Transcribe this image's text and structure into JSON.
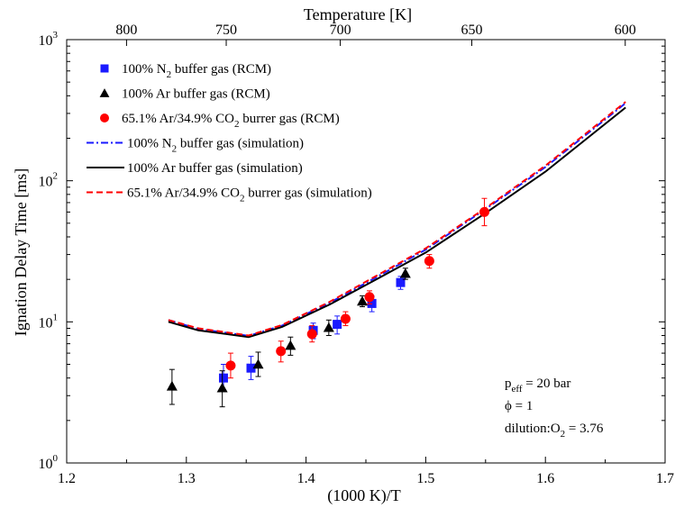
{
  "chart_data": {
    "type": "scatter",
    "xlabel": "(1000 K)/T",
    "ylabel": "Ignation Delay Time [ms]",
    "top_xlabel": "Temperature [K]",
    "xlim": [
      1.2,
      1.7
    ],
    "ylim": [
      1,
      1000
    ],
    "y_scale": "log",
    "grid": false,
    "legend_position": "top-left",
    "x_ticks": [
      "1.2",
      "1.3",
      "1.4",
      "1.5",
      "1.6",
      "1.7"
    ],
    "y_ticks": [
      {
        "base": "10",
        "exp": "0",
        "value": 1
      },
      {
        "base": "10",
        "exp": "1",
        "value": 10
      },
      {
        "base": "10",
        "exp": "2",
        "value": 100
      },
      {
        "base": "10",
        "exp": "3",
        "value": 1000
      }
    ],
    "top_ticks": [
      {
        "label": "800",
        "x": 1.25
      },
      {
        "label": "750",
        "x": 1.3333
      },
      {
        "label": "700",
        "x": 1.4286
      },
      {
        "label": "650",
        "x": 1.5385
      },
      {
        "label": "600",
        "x": 1.6667
      }
    ],
    "series": [
      {
        "name_parts": [
          [
            "100% N",
            ""
          ],
          [
            "2",
            "sub"
          ],
          [
            " buffer gas (RCM)",
            ""
          ]
        ],
        "kind": "points",
        "marker": "square",
        "color": "#1a1aff",
        "x": [
          1.331,
          1.354,
          1.406,
          1.426,
          1.455,
          1.479
        ],
        "y": [
          4.0,
          4.7,
          8.7,
          9.6,
          13.5,
          19.0
        ],
        "err_low": [
          3.3,
          3.9,
          7.6,
          8.2,
          11.8,
          17.0
        ],
        "err_high": [
          5.0,
          5.7,
          9.8,
          11.0,
          15.2,
          21.0
        ]
      },
      {
        "name_parts": [
          [
            "100% Ar buffer gas (RCM)",
            ""
          ]
        ],
        "kind": "points",
        "marker": "triangle",
        "color": "#000000",
        "x": [
          1.288,
          1.33,
          1.36,
          1.387,
          1.419,
          1.447,
          1.483
        ],
        "y": [
          3.5,
          3.4,
          5.0,
          6.8,
          9.1,
          14.0,
          22.0
        ],
        "err_low": [
          2.6,
          2.5,
          4.1,
          5.8,
          8.0,
          12.8,
          20.0
        ],
        "err_high": [
          4.6,
          4.5,
          6.1,
          7.8,
          10.3,
          15.3,
          24.0
        ]
      },
      {
        "name_parts": [
          [
            "65.1% Ar/34.9% CO",
            ""
          ],
          [
            "2",
            "sub"
          ],
          [
            " burrer gas (RCM)",
            ""
          ]
        ],
        "kind": "points",
        "marker": "circle",
        "color": "#ff0000",
        "x": [
          1.337,
          1.379,
          1.405,
          1.433,
          1.453,
          1.503,
          1.549
        ],
        "y": [
          4.9,
          6.2,
          8.2,
          10.5,
          15.0,
          27.0,
          60.0
        ],
        "err_low": [
          4.0,
          5.2,
          7.2,
          9.4,
          13.4,
          24.0,
          48.0
        ],
        "err_high": [
          6.0,
          7.3,
          9.4,
          11.8,
          16.6,
          30.0,
          75.0
        ]
      },
      {
        "name_parts": [
          [
            "100% N",
            ""
          ],
          [
            "2",
            "sub"
          ],
          [
            " buffer gas (simulation)",
            ""
          ]
        ],
        "kind": "line",
        "dash": "8,3,2,3",
        "color": "#1a1aff",
        "x": [
          1.285,
          1.31,
          1.352,
          1.38,
          1.42,
          1.46,
          1.5,
          1.55,
          1.6,
          1.667
        ],
        "y": [
          10.3,
          8.9,
          7.95,
          9.4,
          13.7,
          21.0,
          32.5,
          63.0,
          125.0,
          355.0
        ]
      },
      {
        "name_parts": [
          [
            "100% Ar buffer gas (simulation)",
            ""
          ]
        ],
        "kind": "line",
        "dash": "",
        "color": "#000000",
        "x": [
          1.285,
          1.31,
          1.352,
          1.38,
          1.42,
          1.46,
          1.5,
          1.55,
          1.6,
          1.667
        ],
        "y": [
          10.0,
          8.7,
          7.8,
          9.2,
          13.3,
          20.3,
          31.0,
          59.0,
          116.0,
          330.0
        ]
      },
      {
        "name_parts": [
          [
            "65.1% Ar/34.9% CO",
            ""
          ],
          [
            "2",
            "sub"
          ],
          [
            " burrer gas (simulation)",
            ""
          ]
        ],
        "kind": "line",
        "dash": "7,4",
        "color": "#ff0000",
        "x": [
          1.285,
          1.31,
          1.352,
          1.38,
          1.42,
          1.46,
          1.5,
          1.55,
          1.6,
          1.667
        ],
        "y": [
          10.3,
          9.0,
          8.0,
          9.5,
          13.9,
          21.5,
          33.2,
          64.0,
          128.0,
          362.0
        ]
      }
    ],
    "annotations": [
      [
        [
          "p",
          ""
        ],
        [
          "eff",
          "sub"
        ],
        [
          " = 20 bar",
          ""
        ]
      ],
      [
        [
          "ϕ = 1",
          ""
        ]
      ],
      [
        [
          "dilution:O",
          ""
        ],
        [
          "2",
          "sub"
        ],
        [
          " = 3.76",
          ""
        ]
      ]
    ]
  }
}
